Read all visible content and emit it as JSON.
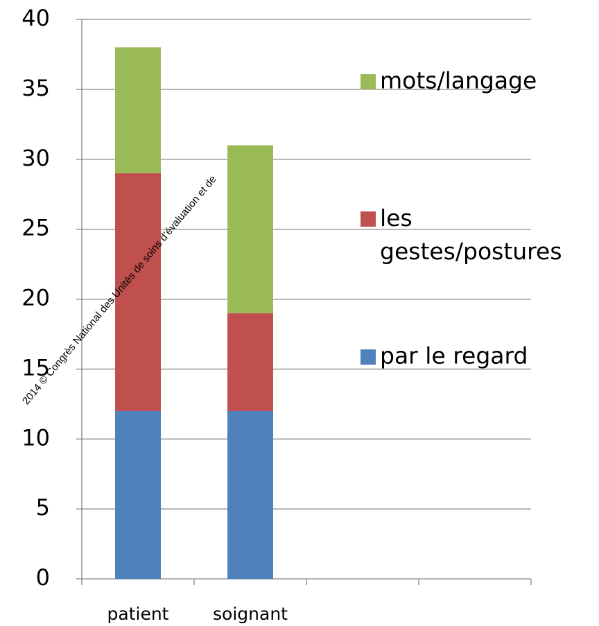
{
  "chart_data": {
    "type": "stacked_bar",
    "categories": [
      "patient",
      "soignant",
      null,
      null
    ],
    "series": [
      {
        "name": "par le regard",
        "color": "#4f81bd",
        "values": [
          12,
          12,
          null,
          null
        ]
      },
      {
        "name": "les gestes/postures",
        "color": "#c0504d",
        "values": [
          17,
          7,
          null,
          null
        ]
      },
      {
        "name": "mots/langage",
        "color": "#9bbb59",
        "values": [
          9,
          12,
          null,
          null
        ]
      }
    ],
    "ylim": [
      0,
      40
    ],
    "yticks": [
      0,
      5,
      10,
      15,
      20,
      25,
      30,
      35,
      40
    ],
    "grid": true,
    "legend": "right",
    "annotation": "2014 © Congrès National des Unités de soins d’évaluation et de"
  }
}
